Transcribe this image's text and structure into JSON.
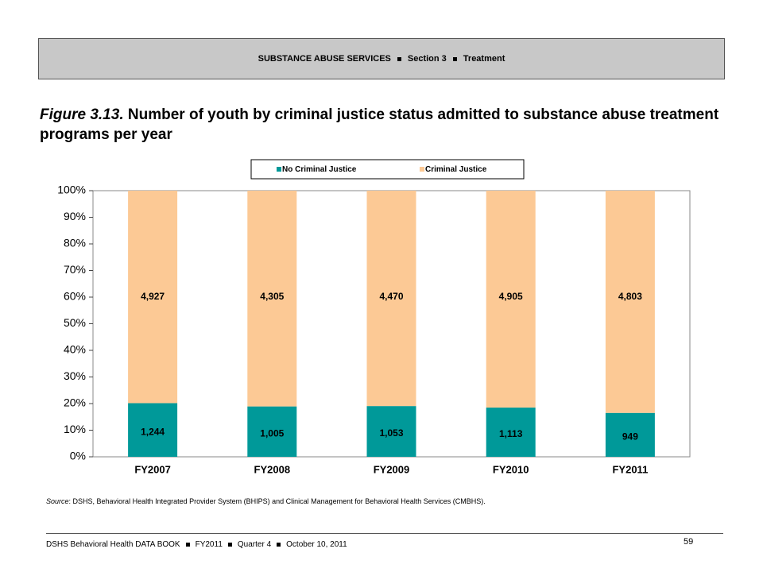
{
  "header": {
    "parts": [
      "SUBSTANCE ABUSE SERVICES",
      "Section 3",
      "Treatment"
    ]
  },
  "figure": {
    "label": "Figure 3.13.",
    "title": "Number of youth by criminal justice status admitted to substance abuse treatment programs per year"
  },
  "chart_data": {
    "type": "bar",
    "stacking": "percent",
    "categories": [
      "FY2007",
      "FY2008",
      "FY2009",
      "FY2010",
      "FY2011"
    ],
    "series": [
      {
        "name": "No Criminal Justice",
        "color": "#009999",
        "values": [
          1244,
          1005,
          1053,
          1113,
          949
        ],
        "value_labels": [
          "1,244",
          "1,005",
          "1,053",
          "1,113",
          "949"
        ]
      },
      {
        "name": "Criminal Justice",
        "color": "#fcc995",
        "values": [
          4927,
          4305,
          4470,
          4905,
          4803
        ],
        "value_labels": [
          "4,927",
          "4,305",
          "4,470",
          "4,905",
          "4,803"
        ]
      }
    ],
    "ylim": [
      0,
      100
    ],
    "yticks": [
      {
        "value": 0,
        "label": "0%"
      },
      {
        "value": 10,
        "label": "10%"
      },
      {
        "value": 20,
        "label": "20%"
      },
      {
        "value": 30,
        "label": "30%"
      },
      {
        "value": 40,
        "label": "40%"
      },
      {
        "value": 50,
        "label": "50%"
      },
      {
        "value": 60,
        "label": "60%"
      },
      {
        "value": 70,
        "label": "70%"
      },
      {
        "value": 80,
        "label": "80%"
      },
      {
        "value": 90,
        "label": "90%"
      },
      {
        "value": 100,
        "label": "100%"
      }
    ],
    "legend": "top"
  },
  "source": {
    "label": "Source",
    "text": ": DSHS, Behavioral Health Integrated Provider System (BHIPS) and Clinical Management for Behavioral Health Services (CMBHS)."
  },
  "footer": {
    "parts": [
      "DSHS Behavioral Health DATA BOOK",
      "FY2011",
      "Quarter 4",
      "October 10, 2011"
    ],
    "page": "59"
  }
}
